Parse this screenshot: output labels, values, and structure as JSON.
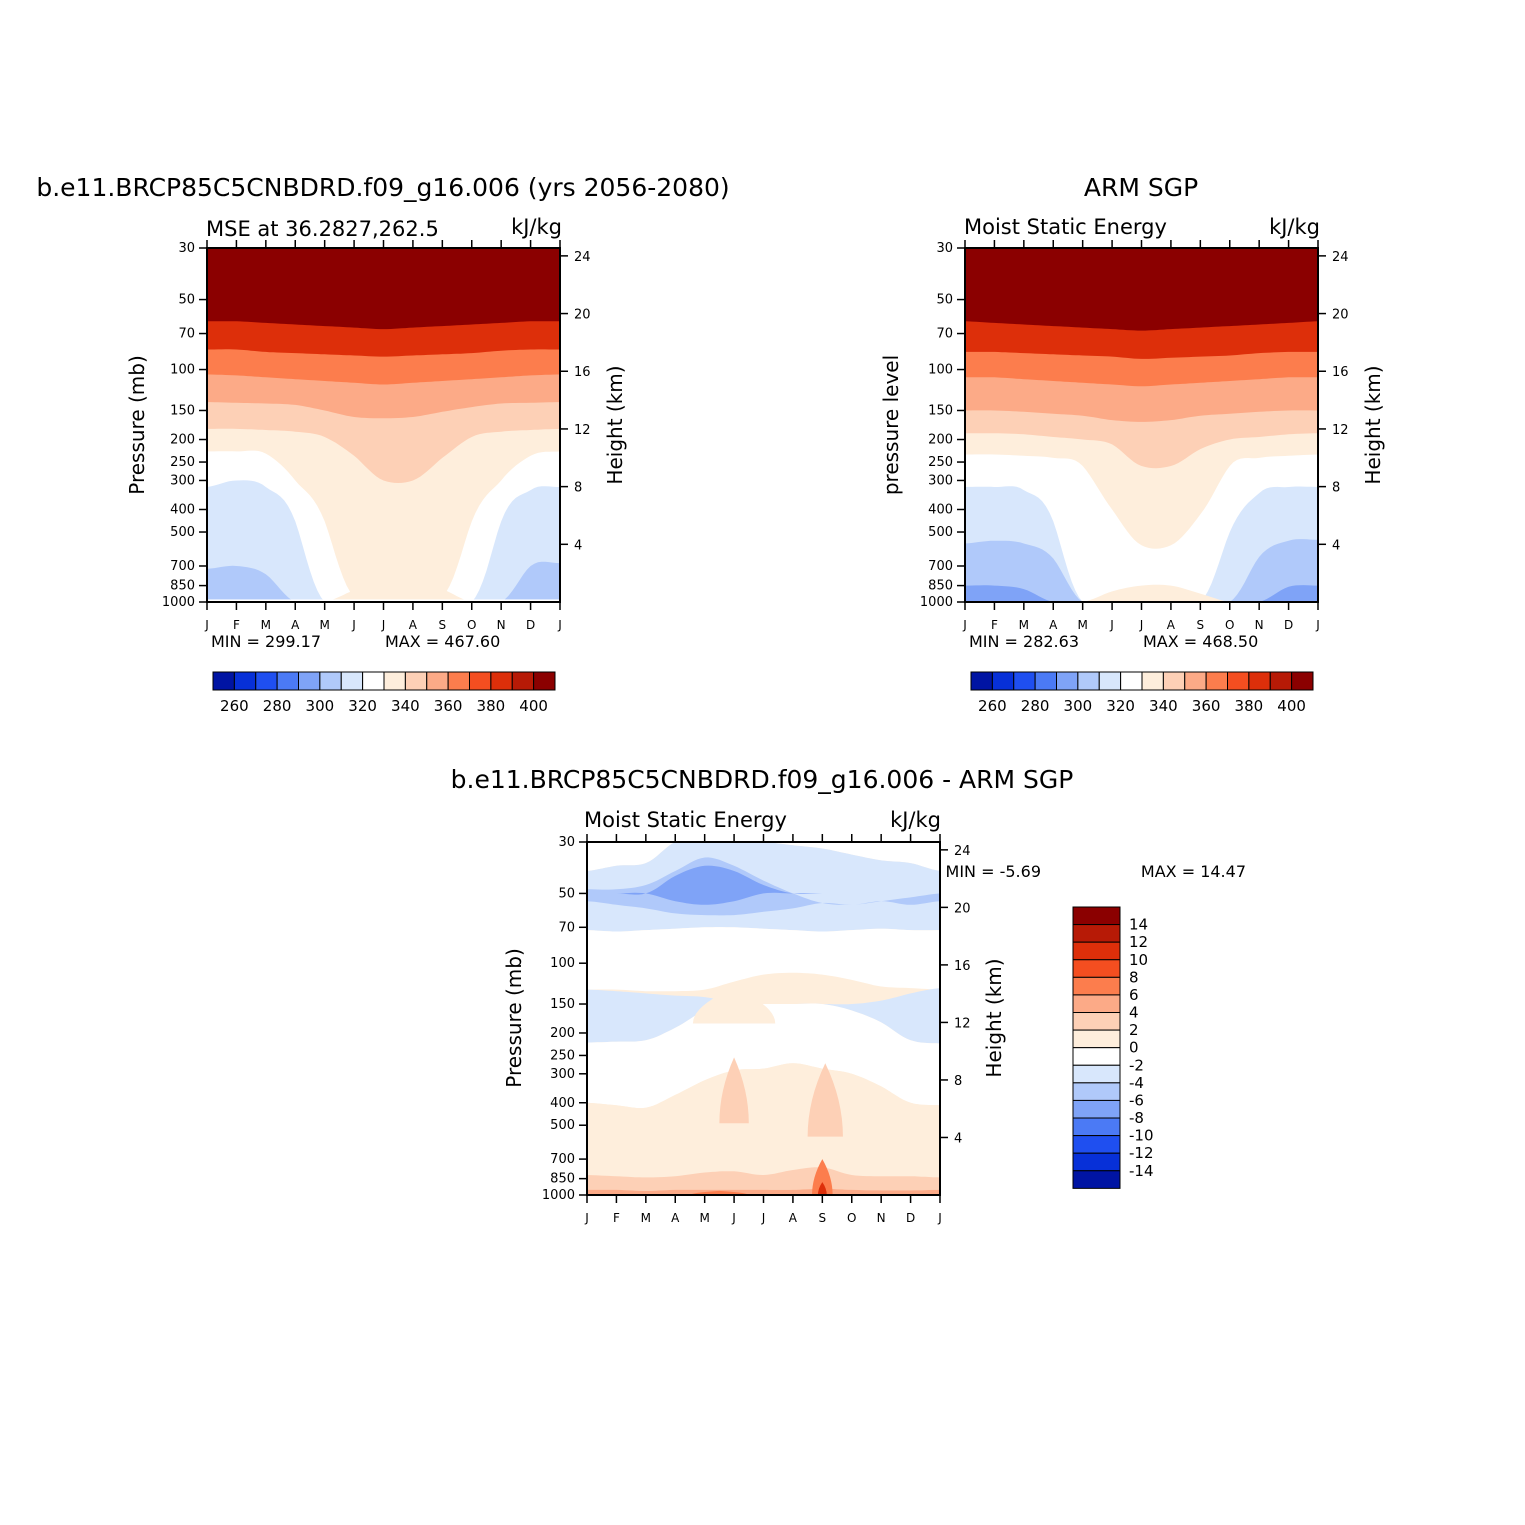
{
  "chart_data": [
    {
      "type": "heatmap",
      "title": "b.e11.BRCP85C5CNBDRD.f09_g16.006 (yrs 2056-2080)",
      "subtitle_left": "MSE at 36.2827,262.5",
      "subtitle_right": "kJ/kg",
      "ylabel": "Pressure (mb)",
      "ylabel_right": "Height (km)",
      "x_months": [
        "J",
        "F",
        "M",
        "A",
        "M",
        "J",
        "J",
        "A",
        "S",
        "O",
        "N",
        "D",
        "J"
      ],
      "y_levels": [
        30,
        50,
        70,
        100,
        150,
        200,
        250,
        300,
        400,
        500,
        700,
        850,
        1000
      ],
      "y_log_scale": true,
      "height_ticks": [
        24,
        20,
        16,
        12,
        8,
        4
      ],
      "min_text": "MIN = 299.17",
      "max_text": "MAX = 467.60",
      "colorbar_orientation": "horizontal",
      "colorbar_levels": [
        260,
        270,
        280,
        290,
        300,
        310,
        320,
        330,
        340,
        350,
        360,
        370,
        380,
        390,
        400
      ],
      "colorbar_labels": [
        "260",
        "280",
        "300",
        "320",
        "340",
        "360",
        "380",
        "400"
      ],
      "contours": [
        {
          "value": 395,
          "level_hpa": [
            62,
            62,
            63,
            64,
            65,
            66,
            67,
            66,
            65,
            64,
            63,
            62,
            62
          ]
        },
        {
          "value": 380,
          "level_hpa": [
            82,
            82,
            84,
            85,
            86,
            87,
            88,
            87,
            86,
            85,
            83,
            82,
            82
          ]
        },
        {
          "value": 370,
          "level_hpa": [
            105,
            106,
            108,
            110,
            112,
            114,
            116,
            114,
            112,
            110,
            108,
            106,
            105
          ]
        },
        {
          "value": 355,
          "level_hpa": [
            138,
            139,
            140,
            142,
            150,
            160,
            162,
            160,
            152,
            145,
            140,
            139,
            138
          ]
        },
        {
          "value": 345,
          "level_hpa": [
            180,
            180,
            182,
            185,
            195,
            235,
            300,
            300,
            240,
            195,
            185,
            182,
            180
          ]
        },
        {
          "value": 335,
          "level_hpa": [
            225,
            225,
            230,
            300,
            450,
            950,
            950,
            950,
            950,
            450,
            300,
            235,
            225
          ]
        },
        {
          "value": 325,
          "level_hpa": [
            320,
            300,
            320,
            450,
            1000,
            1000,
            1000,
            1000,
            1000,
            1000,
            450,
            330,
            320
          ]
        },
        {
          "value": 315,
          "level_hpa": [
            720,
            700,
            760,
            1000,
            1000,
            1000,
            1000,
            1000,
            1000,
            1000,
            1000,
            700,
            680
          ]
        }
      ],
      "surface_layer_hpa": 975,
      "bubble_contour": {
        "value": 345,
        "top_hpa": [
          1000,
          1000,
          1000,
          1000,
          1000,
          890,
          815,
          815,
          880,
          1000,
          1000,
          1000,
          1000
        ]
      }
    },
    {
      "type": "heatmap",
      "title": "ARM SGP",
      "subtitle_left": "Moist Static Energy",
      "subtitle_right": "kJ/kg",
      "ylabel": "pressure level",
      "ylabel_right": "Height (km)",
      "x_months": [
        "J",
        "F",
        "M",
        "A",
        "M",
        "J",
        "J",
        "A",
        "S",
        "O",
        "N",
        "D",
        "J"
      ],
      "y_levels": [
        30,
        50,
        70,
        100,
        150,
        200,
        250,
        300,
        400,
        500,
        700,
        850,
        1000
      ],
      "y_log_scale": true,
      "height_ticks": [
        24,
        20,
        16,
        12,
        8,
        4
      ],
      "min_text": "MIN = 282.63",
      "max_text": "MAX = 468.50",
      "colorbar_orientation": "horizontal",
      "colorbar_levels": [
        260,
        270,
        280,
        290,
        300,
        310,
        320,
        330,
        340,
        350,
        360,
        370,
        380,
        390,
        400
      ],
      "colorbar_labels": [
        "260",
        "280",
        "300",
        "320",
        "340",
        "360",
        "380",
        "400"
      ],
      "contours": [
        {
          "value": 395,
          "level_hpa": [
            62,
            63,
            64,
            65,
            66,
            67,
            68,
            67,
            66,
            65,
            64,
            63,
            62
          ]
        },
        {
          "value": 380,
          "level_hpa": [
            84,
            84,
            85,
            86,
            87,
            88,
            90,
            89,
            88,
            87,
            85,
            84,
            84
          ]
        },
        {
          "value": 370,
          "level_hpa": [
            108,
            108,
            110,
            112,
            114,
            116,
            118,
            116,
            114,
            112,
            110,
            108,
            108
          ]
        },
        {
          "value": 355,
          "level_hpa": [
            150,
            150,
            152,
            155,
            158,
            165,
            168,
            165,
            158,
            155,
            152,
            150,
            150
          ]
        },
        {
          "value": 345,
          "level_hpa": [
            188,
            188,
            190,
            195,
            200,
            210,
            260,
            260,
            220,
            200,
            195,
            190,
            188
          ]
        },
        {
          "value": 335,
          "level_hpa": [
            232,
            232,
            235,
            240,
            260,
            400,
            570,
            570,
            420,
            260,
            240,
            235,
            232
          ]
        },
        {
          "value": 325,
          "level_hpa": [
            320,
            320,
            330,
            450,
            1000,
            1000,
            1000,
            1000,
            1000,
            500,
            340,
            320,
            320
          ]
        },
        {
          "value": 315,
          "level_hpa": [
            560,
            545,
            560,
            650,
            1000,
            1000,
            1000,
            1000,
            1000,
            1000,
            640,
            545,
            540
          ]
        },
        {
          "value": 305,
          "level_hpa": [
            850,
            850,
            880,
            1000,
            1000,
            1000,
            1000,
            1000,
            1000,
            1000,
            1000,
            860,
            850
          ]
        }
      ],
      "surface_layer_hpa": 1000,
      "bubble_contour": {
        "value": 345,
        "top_hpa": [
          1000,
          1000,
          1000,
          1000,
          1000,
          900,
          850,
          850,
          920,
          1000,
          1000,
          1000,
          1000
        ]
      }
    },
    {
      "type": "heatmap",
      "title": "b.e11.BRCP85C5CNBDRD.f09_g16.006 - ARM SGP",
      "subtitle_left": "Moist Static Energy",
      "subtitle_right": "kJ/kg",
      "ylabel": "Pressure (mb)",
      "ylabel_right": "Height (km)",
      "x_months": [
        "J",
        "F",
        "M",
        "A",
        "M",
        "J",
        "J",
        "A",
        "S",
        "O",
        "N",
        "D",
        "J"
      ],
      "y_levels": [
        30,
        50,
        70,
        100,
        150,
        200,
        250,
        300,
        400,
        500,
        700,
        850,
        1000
      ],
      "y_log_scale": true,
      "height_ticks": [
        24,
        20,
        16,
        12,
        8,
        4
      ],
      "min_text": "MIN =   -5.69",
      "max_text": "MAX =   14.47",
      "colorbar_orientation": "vertical",
      "colorbar_levels": [
        -14,
        -12,
        -10,
        -8,
        -6,
        -4,
        -2,
        0,
        2,
        4,
        6,
        8,
        10,
        12,
        14
      ],
      "colorbar_labels": [
        "14",
        "12",
        "10",
        "8",
        "6",
        "4",
        "2",
        "0",
        "-2",
        "-4",
        "-6",
        "-8",
        "-10",
        "-12",
        "-14"
      ],
      "bands": [
        {
          "value": 1,
          "top_hpa": [
            30,
            30,
            30,
            30,
            30,
            30,
            30,
            30,
            30,
            30,
            30,
            30,
            30
          ],
          "bottom_hpa": [
            40,
            38,
            37,
            30,
            30,
            30,
            30,
            31,
            32,
            34,
            36,
            37,
            40
          ]
        },
        {
          "value": -1,
          "top_hpa": [
            40,
            38,
            37,
            30,
            30,
            30,
            30,
            31,
            32,
            34,
            36,
            37,
            40
          ],
          "bottom_hpa": [
            72,
            73,
            72,
            71,
            70,
            70,
            71,
            72,
            73,
            72,
            71,
            72,
            72
          ]
        },
        {
          "value": -3,
          "top_hpa": [
            48,
            48,
            46,
            40,
            35,
            38,
            44,
            50,
            55,
            56,
            54,
            52,
            50
          ],
          "bottom_hpa": [
            54,
            56,
            58,
            61,
            62,
            62,
            60,
            58,
            55,
            56,
            54,
            56,
            54
          ]
        },
        {
          "value": -5,
          "top_hpa": [
            50,
            50,
            50,
            42,
            38,
            40,
            46,
            50,
            50,
            50,
            50,
            50,
            50
          ],
          "bottom_hpa": [
            50,
            50,
            50,
            54,
            56,
            54,
            50,
            50,
            50,
            50,
            50,
            50,
            50
          ]
        },
        {
          "value": 1,
          "top_hpa": [
            72,
            73,
            72,
            71,
            70,
            70,
            71,
            72,
            73,
            72,
            71,
            72,
            72
          ],
          "bottom_hpa": [
            130,
            130,
            132,
            132,
            130,
            120,
            112,
            110,
            112,
            118,
            126,
            128,
            130
          ]
        },
        {
          "value": -1,
          "top_hpa": [
            130,
            132,
            135,
            138,
            140,
            148,
            150,
            150,
            150,
            150,
            145,
            135,
            128
          ],
          "bottom_hpa": [
            220,
            218,
            215,
            190,
            160,
            150,
            150,
            150,
            150,
            160,
            180,
            215,
            222
          ]
        },
        {
          "value": 1,
          "top_hpa": [
            220,
            218,
            215,
            190,
            160,
            150,
            150,
            150,
            150,
            160,
            180,
            215,
            222
          ],
          "bottom_hpa": [
            400,
            410,
            420,
            370,
            320,
            290,
            285,
            270,
            285,
            300,
            340,
            400,
            410
          ]
        },
        {
          "value": 3,
          "top_hpa": [
            400,
            410,
            420,
            370,
            320,
            290,
            285,
            270,
            285,
            300,
            340,
            400,
            410
          ],
          "bottom_hpa": [
            820,
            830,
            840,
            830,
            800,
            790,
            820,
            780,
            760,
            820,
            830,
            830,
            840
          ]
        },
        {
          "value": 5,
          "top_hpa": [
            820,
            830,
            840,
            830,
            800,
            790,
            820,
            780,
            760,
            820,
            830,
            830,
            840
          ],
          "bottom_hpa": [
            950,
            950,
            960,
            950,
            950,
            950,
            950,
            950,
            940,
            950,
            955,
            955,
            950
          ]
        },
        {
          "value": 7,
          "top_hpa": [
            950,
            950,
            960,
            950,
            950,
            950,
            950,
            950,
            940,
            950,
            955,
            955,
            950
          ],
          "bottom_hpa": [
            1000,
            1000,
            1000,
            1000,
            1000,
            1000,
            1000,
            1000,
            1000,
            1000,
            1000,
            1000,
            1000
          ]
        }
      ],
      "patches": [
        {
          "value": 3,
          "month": 5.0,
          "p_top": 128,
          "p_bottom": 182,
          "half_width_months": 1.4
        },
        {
          "value": 5,
          "month": 5.0,
          "p_top": 255,
          "p_bottom": 490,
          "half_width_months": 0.5
        },
        {
          "value": 5,
          "month": 8.1,
          "p_top": 270,
          "p_bottom": 560,
          "half_width_months": 0.6
        },
        {
          "value": 9,
          "month": 8.0,
          "p_top": 700,
          "p_bottom": 1000,
          "half_width_months": 0.35
        },
        {
          "value": 13,
          "month": 8.0,
          "p_top": 880,
          "p_bottom": 1000,
          "half_width_months": 0.15
        },
        {
          "value": 9,
          "month": 4.5,
          "p_top": 960,
          "p_bottom": 1000,
          "half_width_months": 1.0
        }
      ]
    }
  ],
  "colors": {
    "palette": [
      "#00007f",
      "#0014a3",
      "#0730d8",
      "#1f4ff0",
      "#4b7af5",
      "#7fa3f7",
      "#b0c9fa",
      "#d8e7fc",
      "#ffffff",
      "#feeedc",
      "#fdd0b6",
      "#fcaa87",
      "#fc7d4d",
      "#f44e20",
      "#dd2f0a",
      "#b71a06",
      "#8b0000"
    ]
  }
}
